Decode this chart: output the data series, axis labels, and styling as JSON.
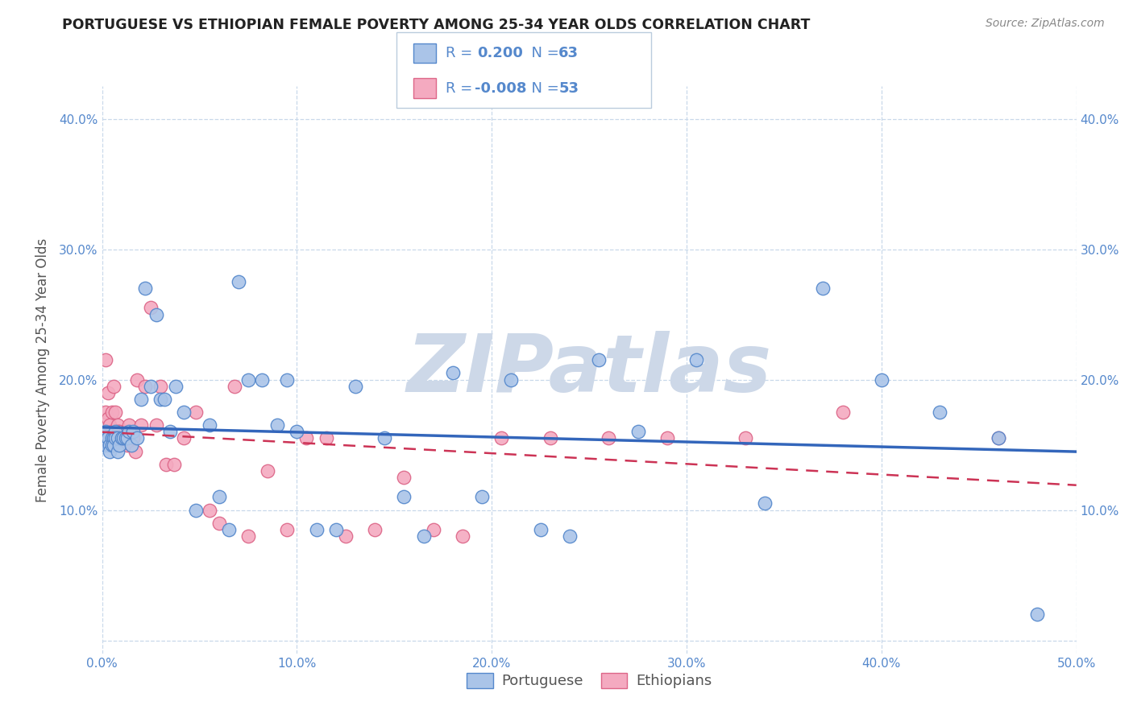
{
  "title": "PORTUGUESE VS ETHIOPIAN FEMALE POVERTY AMONG 25-34 YEAR OLDS CORRELATION CHART",
  "source": "Source: ZipAtlas.com",
  "ylabel": "Female Poverty Among 25-34 Year Olds",
  "xlim": [
    0.0,
    0.5
  ],
  "ylim": [
    -0.01,
    0.425
  ],
  "xticks": [
    0.0,
    0.1,
    0.2,
    0.3,
    0.4,
    0.5
  ],
  "yticks": [
    0.0,
    0.1,
    0.2,
    0.3,
    0.4
  ],
  "xtick_labels": [
    "0.0%",
    "10.0%",
    "20.0%",
    "30.0%",
    "40.0%",
    "50.0%"
  ],
  "ytick_labels_left": [
    "",
    "10.0%",
    "20.0%",
    "30.0%",
    "40.0%"
  ],
  "ytick_labels_right": [
    "",
    "10.0%",
    "20.0%",
    "30.0%",
    "40.0%"
  ],
  "portuguese_color": "#aac4e8",
  "ethiopian_color": "#f4aac0",
  "portuguese_edge_color": "#5588cc",
  "ethiopian_edge_color": "#dd6688",
  "regression_portuguese_color": "#3366bb",
  "regression_ethiopian_color": "#cc3355",
  "R_portuguese": 0.2,
  "N_portuguese": 63,
  "R_ethiopian": -0.008,
  "N_ethiopian": 53,
  "portuguese_x": [
    0.001,
    0.002,
    0.002,
    0.003,
    0.003,
    0.004,
    0.004,
    0.005,
    0.005,
    0.006,
    0.006,
    0.007,
    0.007,
    0.008,
    0.008,
    0.009,
    0.01,
    0.011,
    0.012,
    0.013,
    0.014,
    0.015,
    0.016,
    0.018,
    0.02,
    0.022,
    0.025,
    0.028,
    0.03,
    0.032,
    0.035,
    0.038,
    0.042,
    0.048,
    0.055,
    0.06,
    0.065,
    0.07,
    0.075,
    0.082,
    0.09,
    0.095,
    0.1,
    0.11,
    0.12,
    0.13,
    0.145,
    0.155,
    0.165,
    0.18,
    0.195,
    0.21,
    0.225,
    0.24,
    0.255,
    0.275,
    0.305,
    0.34,
    0.37,
    0.4,
    0.43,
    0.46,
    0.48
  ],
  "portuguese_y": [
    0.155,
    0.16,
    0.15,
    0.155,
    0.155,
    0.15,
    0.145,
    0.155,
    0.15,
    0.155,
    0.15,
    0.16,
    0.155,
    0.155,
    0.145,
    0.15,
    0.155,
    0.155,
    0.155,
    0.155,
    0.16,
    0.15,
    0.16,
    0.155,
    0.185,
    0.27,
    0.195,
    0.25,
    0.185,
    0.185,
    0.16,
    0.195,
    0.175,
    0.1,
    0.165,
    0.11,
    0.085,
    0.275,
    0.2,
    0.2,
    0.165,
    0.2,
    0.16,
    0.085,
    0.085,
    0.195,
    0.155,
    0.11,
    0.08,
    0.205,
    0.11,
    0.2,
    0.085,
    0.08,
    0.215,
    0.16,
    0.215,
    0.105,
    0.27,
    0.2,
    0.175,
    0.155,
    0.02
  ],
  "ethiopian_x": [
    0.001,
    0.002,
    0.002,
    0.003,
    0.003,
    0.004,
    0.005,
    0.005,
    0.006,
    0.006,
    0.007,
    0.007,
    0.008,
    0.008,
    0.009,
    0.01,
    0.011,
    0.012,
    0.013,
    0.014,
    0.015,
    0.016,
    0.017,
    0.018,
    0.02,
    0.022,
    0.025,
    0.028,
    0.03,
    0.033,
    0.037,
    0.042,
    0.048,
    0.055,
    0.06,
    0.068,
    0.075,
    0.085,
    0.095,
    0.105,
    0.115,
    0.125,
    0.14,
    0.155,
    0.17,
    0.185,
    0.205,
    0.23,
    0.26,
    0.29,
    0.33,
    0.38,
    0.46
  ],
  "ethiopian_y": [
    0.155,
    0.215,
    0.175,
    0.19,
    0.17,
    0.165,
    0.16,
    0.175,
    0.155,
    0.195,
    0.16,
    0.175,
    0.165,
    0.16,
    0.16,
    0.155,
    0.155,
    0.16,
    0.15,
    0.165,
    0.15,
    0.155,
    0.145,
    0.2,
    0.165,
    0.195,
    0.255,
    0.165,
    0.195,
    0.135,
    0.135,
    0.155,
    0.175,
    0.1,
    0.09,
    0.195,
    0.08,
    0.13,
    0.085,
    0.155,
    0.155,
    0.08,
    0.085,
    0.125,
    0.085,
    0.08,
    0.155,
    0.155,
    0.155,
    0.155,
    0.155,
    0.175,
    0.155
  ],
  "background_color": "#ffffff",
  "grid_color": "#c8d8ea",
  "watermark_color": "#cdd8e8",
  "tick_color": "#5588cc",
  "title_color": "#222222",
  "source_color": "#888888",
  "ylabel_color": "#555555"
}
